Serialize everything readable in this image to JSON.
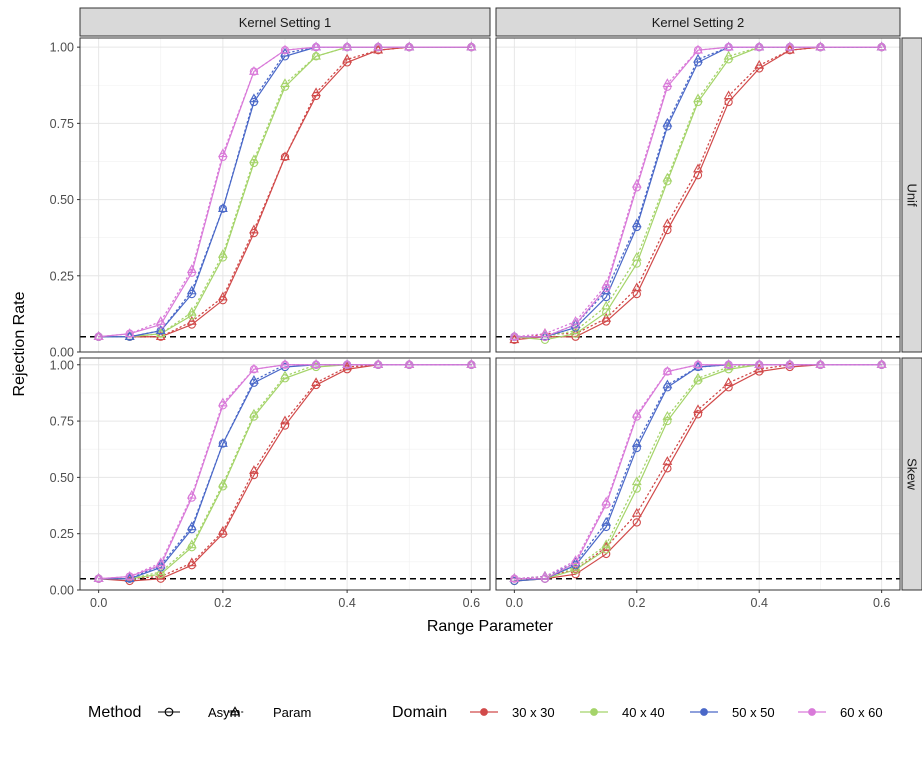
{
  "chart_data": {
    "type": "line",
    "xlabel": "Range Parameter",
    "ylabel": "Rejection Rate",
    "xlim": [
      -0.03,
      0.63
    ],
    "ylim": [
      0,
      1.03
    ],
    "x_ticks": [
      "0.0",
      "0.2",
      "0.4",
      "0.6"
    ],
    "x_tick_values": [
      0,
      0.2,
      0.4,
      0.6
    ],
    "y_ticks": [
      "0.00",
      "0.25",
      "0.50",
      "0.75",
      "1.00"
    ],
    "y_tick_values": [
      0,
      0.25,
      0.5,
      0.75,
      1.0
    ],
    "reference_line": 0.05,
    "grid": true,
    "legend_position": "bottom",
    "col_strips": [
      "Kernel Setting 1",
      "Kernel Setting 2"
    ],
    "row_strips": [
      "Unif",
      "Skew"
    ],
    "x": [
      0,
      0.05,
      0.1,
      0.15,
      0.2,
      0.25,
      0.3,
      0.35,
      0.4,
      0.45,
      0.5,
      0.6
    ],
    "method_legend": {
      "title": "Method",
      "items": [
        {
          "label": "Asym",
          "marker": "circle",
          "line": "solid"
        },
        {
          "label": "Param",
          "marker": "triangle",
          "line": "dotted"
        }
      ]
    },
    "domain_legend": {
      "title": "Domain",
      "items": [
        {
          "label": "30 x 30",
          "color": "#d14a4a"
        },
        {
          "label": "40 x 40",
          "color": "#a5d46a"
        },
        {
          "label": "50 x 50",
          "color": "#4a68c8"
        },
        {
          "label": "60 x 60",
          "color": "#d97ad9"
        }
      ]
    },
    "panels": [
      {
        "col": "Kernel Setting 1",
        "row": "Unif",
        "series": [
          {
            "domain": "30 x 30",
            "method": "Asym",
            "values": [
              0.05,
              0.05,
              0.05,
              0.09,
              0.17,
              0.39,
              0.64,
              0.84,
              0.95,
              0.99,
              1.0,
              1.0
            ]
          },
          {
            "domain": "30 x 30",
            "method": "Param",
            "values": [
              0.05,
              0.05,
              0.05,
              0.1,
              0.18,
              0.4,
              0.64,
              0.85,
              0.96,
              0.99,
              1.0,
              1.0
            ]
          },
          {
            "domain": "40 x 40",
            "method": "Asym",
            "values": [
              0.05,
              0.05,
              0.06,
              0.12,
              0.31,
              0.62,
              0.87,
              0.97,
              1.0,
              1.0,
              1.0,
              1.0
            ]
          },
          {
            "domain": "40 x 40",
            "method": "Param",
            "values": [
              0.05,
              0.05,
              0.06,
              0.13,
              0.32,
              0.63,
              0.88,
              0.97,
              1.0,
              1.0,
              1.0,
              1.0
            ]
          },
          {
            "domain": "50 x 50",
            "method": "Asym",
            "values": [
              0.05,
              0.05,
              0.07,
              0.19,
              0.47,
              0.82,
              0.97,
              1.0,
              1.0,
              1.0,
              1.0,
              1.0
            ]
          },
          {
            "domain": "50 x 50",
            "method": "Param",
            "values": [
              0.05,
              0.05,
              0.07,
              0.2,
              0.47,
              0.83,
              0.98,
              1.0,
              1.0,
              1.0,
              1.0,
              1.0
            ]
          },
          {
            "domain": "60 x 60",
            "method": "Asym",
            "values": [
              0.05,
              0.06,
              0.09,
              0.26,
              0.64,
              0.92,
              0.99,
              1.0,
              1.0,
              1.0,
              1.0,
              1.0
            ]
          },
          {
            "domain": "60 x 60",
            "method": "Param",
            "values": [
              0.05,
              0.06,
              0.1,
              0.27,
              0.65,
              0.92,
              0.99,
              1.0,
              1.0,
              1.0,
              1.0,
              1.0
            ]
          }
        ]
      },
      {
        "col": "Kernel Setting 2",
        "row": "Unif",
        "series": [
          {
            "domain": "30 x 30",
            "method": "Asym",
            "values": [
              0.04,
              0.05,
              0.05,
              0.1,
              0.19,
              0.4,
              0.58,
              0.82,
              0.93,
              0.99,
              1.0,
              1.0
            ]
          },
          {
            "domain": "30 x 30",
            "method": "Param",
            "values": [
              0.04,
              0.06,
              0.06,
              0.11,
              0.21,
              0.42,
              0.6,
              0.84,
              0.94,
              0.99,
              1.0,
              1.0
            ]
          },
          {
            "domain": "40 x 40",
            "method": "Asym",
            "values": [
              0.05,
              0.04,
              0.06,
              0.13,
              0.29,
              0.56,
              0.82,
              0.96,
              1.0,
              1.0,
              1.0,
              1.0
            ]
          },
          {
            "domain": "40 x 40",
            "method": "Param",
            "values": [
              0.05,
              0.05,
              0.07,
              0.15,
              0.31,
              0.57,
              0.83,
              0.97,
              1.0,
              1.0,
              1.0,
              1.0
            ]
          },
          {
            "domain": "50 x 50",
            "method": "Asym",
            "values": [
              0.05,
              0.05,
              0.08,
              0.18,
              0.41,
              0.74,
              0.95,
              1.0,
              1.0,
              1.0,
              1.0,
              1.0
            ]
          },
          {
            "domain": "50 x 50",
            "method": "Param",
            "values": [
              0.05,
              0.05,
              0.09,
              0.2,
              0.42,
              0.75,
              0.96,
              1.0,
              1.0,
              1.0,
              1.0,
              1.0
            ]
          },
          {
            "domain": "60 x 60",
            "method": "Asym",
            "values": [
              0.05,
              0.05,
              0.09,
              0.21,
              0.54,
              0.87,
              0.99,
              1.0,
              1.0,
              1.0,
              1.0,
              1.0
            ]
          },
          {
            "domain": "60 x 60",
            "method": "Param",
            "values": [
              0.05,
              0.06,
              0.1,
              0.22,
              0.55,
              0.88,
              0.99,
              1.0,
              1.0,
              1.0,
              1.0,
              1.0
            ]
          }
        ]
      },
      {
        "col": "Kernel Setting 1",
        "row": "Skew",
        "series": [
          {
            "domain": "30 x 30",
            "method": "Asym",
            "values": [
              0.05,
              0.04,
              0.05,
              0.11,
              0.25,
              0.51,
              0.73,
              0.91,
              0.98,
              1.0,
              1.0,
              1.0
            ]
          },
          {
            "domain": "30 x 30",
            "method": "Param",
            "values": [
              0.05,
              0.05,
              0.06,
              0.12,
              0.26,
              0.53,
              0.75,
              0.92,
              0.99,
              1.0,
              1.0,
              1.0
            ]
          },
          {
            "domain": "40 x 40",
            "method": "Asym",
            "values": [
              0.05,
              0.05,
              0.07,
              0.19,
              0.46,
              0.77,
              0.94,
              0.99,
              1.0,
              1.0,
              1.0,
              1.0
            ]
          },
          {
            "domain": "40 x 40",
            "method": "Param",
            "values": [
              0.05,
              0.05,
              0.08,
              0.2,
              0.47,
              0.78,
              0.95,
              1.0,
              1.0,
              1.0,
              1.0,
              1.0
            ]
          },
          {
            "domain": "50 x 50",
            "method": "Asym",
            "values": [
              0.05,
              0.05,
              0.1,
              0.27,
              0.65,
              0.92,
              0.99,
              1.0,
              1.0,
              1.0,
              1.0,
              1.0
            ]
          },
          {
            "domain": "50 x 50",
            "method": "Param",
            "values": [
              0.05,
              0.05,
              0.11,
              0.28,
              0.65,
              0.93,
              1.0,
              1.0,
              1.0,
              1.0,
              1.0,
              1.0
            ]
          },
          {
            "domain": "60 x 60",
            "method": "Asym",
            "values": [
              0.05,
              0.06,
              0.11,
              0.41,
              0.82,
              0.98,
              1.0,
              1.0,
              1.0,
              1.0,
              1.0,
              1.0
            ]
          },
          {
            "domain": "60 x 60",
            "method": "Param",
            "values": [
              0.05,
              0.06,
              0.12,
              0.42,
              0.83,
              0.98,
              1.0,
              1.0,
              1.0,
              1.0,
              1.0,
              1.0
            ]
          }
        ]
      },
      {
        "col": "Kernel Setting 2",
        "row": "Skew",
        "series": [
          {
            "domain": "30 x 30",
            "method": "Asym",
            "values": [
              0.04,
              0.05,
              0.07,
              0.16,
              0.3,
              0.54,
              0.78,
              0.9,
              0.97,
              0.99,
              1.0,
              1.0
            ]
          },
          {
            "domain": "30 x 30",
            "method": "Param",
            "values": [
              0.05,
              0.06,
              0.09,
              0.19,
              0.34,
              0.57,
              0.8,
              0.92,
              0.98,
              1.0,
              1.0,
              1.0
            ]
          },
          {
            "domain": "40 x 40",
            "method": "Asym",
            "values": [
              0.04,
              0.05,
              0.09,
              0.18,
              0.45,
              0.75,
              0.93,
              0.98,
              1.0,
              1.0,
              1.0,
              1.0
            ]
          },
          {
            "domain": "40 x 40",
            "method": "Param",
            "values": [
              0.05,
              0.06,
              0.1,
              0.2,
              0.48,
              0.77,
              0.94,
              0.99,
              1.0,
              1.0,
              1.0,
              1.0
            ]
          },
          {
            "domain": "50 x 50",
            "method": "Asym",
            "values": [
              0.04,
              0.05,
              0.11,
              0.28,
              0.63,
              0.9,
              0.99,
              1.0,
              1.0,
              1.0,
              1.0,
              1.0
            ]
          },
          {
            "domain": "50 x 50",
            "method": "Param",
            "values": [
              0.05,
              0.06,
              0.12,
              0.3,
              0.65,
              0.91,
              0.99,
              1.0,
              1.0,
              1.0,
              1.0,
              1.0
            ]
          },
          {
            "domain": "60 x 60",
            "method": "Asym",
            "values": [
              0.05,
              0.05,
              0.12,
              0.38,
              0.77,
              0.97,
              1.0,
              1.0,
              1.0,
              1.0,
              1.0,
              1.0
            ]
          },
          {
            "domain": "60 x 60",
            "method": "Param",
            "values": [
              0.05,
              0.06,
              0.13,
              0.39,
              0.78,
              0.97,
              1.0,
              1.0,
              1.0,
              1.0,
              1.0,
              1.0
            ]
          }
        ]
      }
    ]
  }
}
